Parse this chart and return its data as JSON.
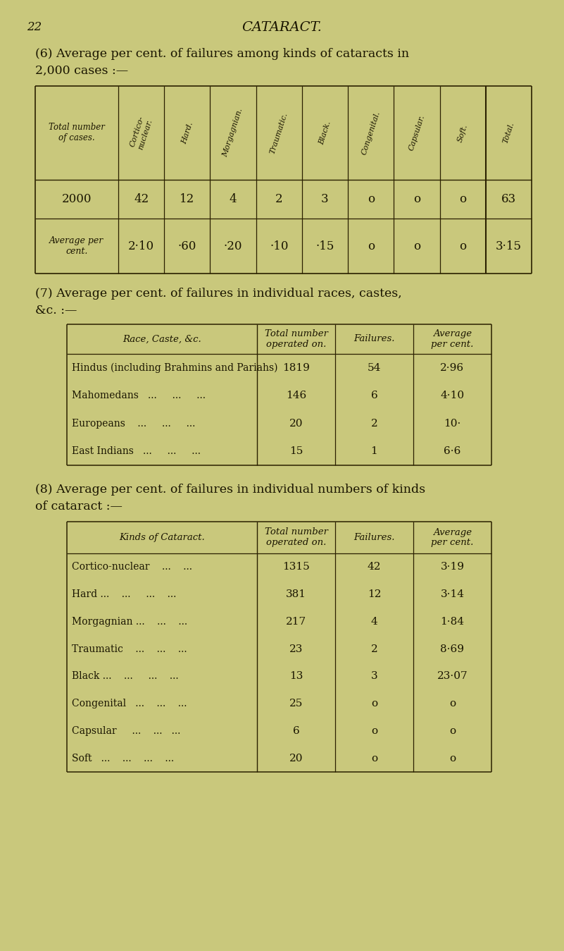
{
  "bg_color": "#c9c87c",
  "page_num": "22",
  "page_title": "CATARACT.",
  "section6_line1": "(6) Average per cent. of failures among kinds of cataracts in",
  "section6_line2": "2,000 cases :—",
  "section6_col_headers": [
    "Total number\nof cases.",
    "Cortico-\nnuclear.",
    "Hard.",
    "Morgagnian.",
    "Traumatic.",
    "Black.",
    "Congenital.",
    "Capsular.",
    "Soft.",
    "Total."
  ],
  "section6_row1": [
    "2000",
    "42",
    "12",
    "4",
    "2",
    "3",
    "o",
    "o",
    "o",
    "63"
  ],
  "section6_row2_label": "Average per\ncent.",
  "section6_row2_vals": [
    "2·10",
    "·60",
    "·20",
    "·10",
    "·15",
    "o",
    "o",
    "o",
    "3·15"
  ],
  "section7_line1": "(7) Average per cent. of failures in individual races, castes,",
  "section7_line2": "&c. :—",
  "section7_col_headers": [
    "Race, Caste, &c.",
    "Total number\noperated on.",
    "Failures.",
    "Average\nper cent."
  ],
  "section7_rows": [
    [
      "Hindus (including Brahmins and Pariahs)",
      "1819",
      "54",
      "2·96"
    ],
    [
      "Mahomedans   ...     ...     ...",
      "146",
      "6",
      "4·10"
    ],
    [
      "Europeans    ...     ...     ...",
      "20",
      "2",
      "10·"
    ],
    [
      "East Indians   ...     ...     ...",
      "15",
      "1",
      "6·6"
    ]
  ],
  "section8_line1": "(8) Average per cent. of failures in individual numbers of kinds",
  "section8_line2": "of cataract :—",
  "section8_col_headers": [
    "Kinds of Cataract.",
    "Total number\noperated on.",
    "Failures.",
    "Average\nper cent."
  ],
  "section8_rows": [
    [
      "Cortico-nuclear    ...    ...",
      "1315",
      "42",
      "3·19"
    ],
    [
      "Hard ...    ...     ...    ...",
      "381",
      "12",
      "3·14"
    ],
    [
      "Morgagnian ...    ...    ...",
      "217",
      "4",
      "1·84"
    ],
    [
      "Traumatic    ...    ...    ...",
      "23",
      "2",
      "8·69"
    ],
    [
      "Black ...    ...     ...    ...",
      "13",
      "3",
      "23·07"
    ],
    [
      "Congenital   ...    ...    ...",
      "25",
      "o",
      "o"
    ],
    [
      "Capsular     ...    ...   ...",
      "6",
      "o",
      "o"
    ],
    [
      "Soft   ...    ...    ...    ...",
      "20",
      "o",
      "o"
    ]
  ],
  "text_color": "#1a1500",
  "line_color": "#2a2000"
}
